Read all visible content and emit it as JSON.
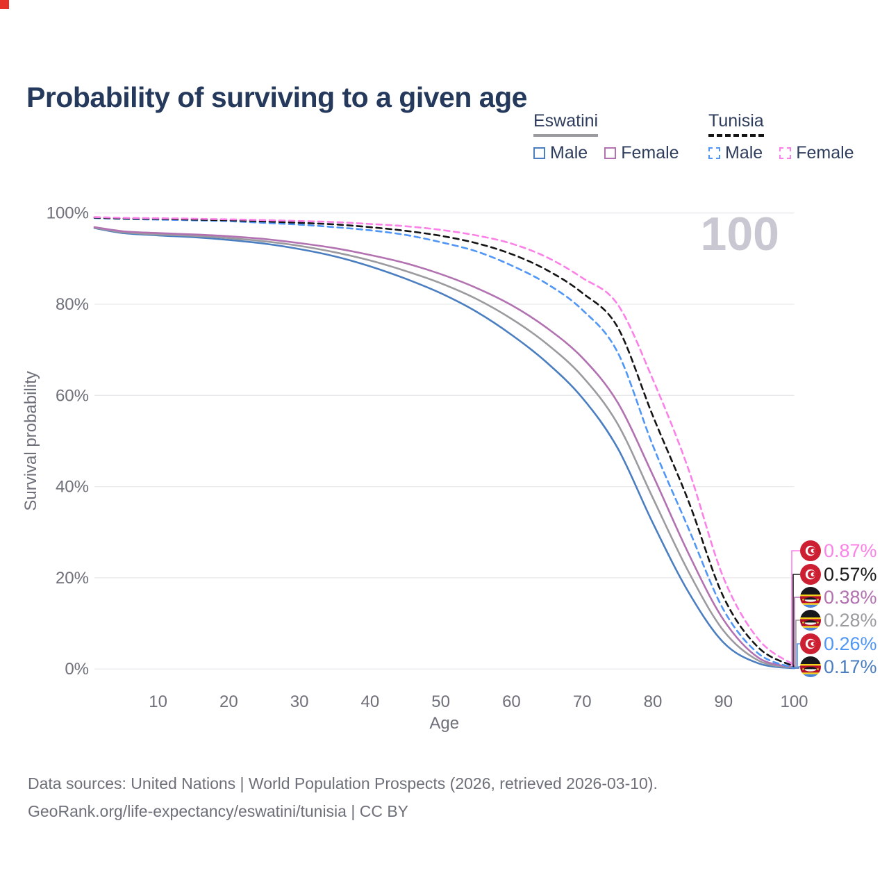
{
  "page": {
    "title": "Probability of surviving to a given age",
    "watermark_age": "100"
  },
  "legend": {
    "groups": [
      {
        "name": "Eswatini",
        "line_style": "solid",
        "underline_color": "#9b9b9f",
        "items": [
          {
            "label": "Male",
            "color": "#4a7ec0"
          },
          {
            "label": "Female",
            "color": "#b271b0"
          }
        ]
      },
      {
        "name": "Tunisia",
        "line_style": "dashed",
        "underline_color": "#141414",
        "items": [
          {
            "label": "Male",
            "color": "#4f96f6"
          },
          {
            "label": "Female",
            "color": "#fb80e8"
          }
        ]
      }
    ]
  },
  "chart_data": {
    "type": "line",
    "title": "Probability of surviving to a given age",
    "xlabel": "Age",
    "ylabel": "Survival probability",
    "xlim": [
      1,
      100
    ],
    "ylim": [
      0,
      100
    ],
    "x_ticks": [
      10,
      20,
      30,
      40,
      50,
      60,
      70,
      80,
      90,
      100
    ],
    "y_ticks": [
      0,
      20,
      40,
      60,
      80,
      100
    ],
    "y_tick_suffix": "%",
    "grid": "horizontal",
    "legend_position": "top-right",
    "series": [
      {
        "name": "Eswatini Male",
        "country": "Eswatini",
        "sex": "male",
        "color": "#4a7ec0",
        "dash": "none",
        "points": [
          [
            1,
            96.7
          ],
          [
            5,
            95.6
          ],
          [
            10,
            95.1
          ],
          [
            15,
            94.7
          ],
          [
            20,
            94.1
          ],
          [
            25,
            93.3
          ],
          [
            30,
            92.1
          ],
          [
            35,
            90.5
          ],
          [
            40,
            88.3
          ],
          [
            45,
            85.6
          ],
          [
            50,
            82.4
          ],
          [
            55,
            78.4
          ],
          [
            60,
            73.3
          ],
          [
            65,
            67.2
          ],
          [
            70,
            59.5
          ],
          [
            75,
            48.5
          ],
          [
            80,
            32.0
          ],
          [
            85,
            17.0
          ],
          [
            90,
            5.8
          ],
          [
            95,
            1.2
          ],
          [
            100,
            0.17
          ]
        ],
        "end_value_pct": 0.17
      },
      {
        "name": "Eswatini Both sexes",
        "country": "Eswatini",
        "sex": "both",
        "color": "#9b9b9f",
        "dash": "none",
        "points": [
          [
            1,
            96.8
          ],
          [
            5,
            95.8
          ],
          [
            10,
            95.3
          ],
          [
            15,
            95.0
          ],
          [
            20,
            94.5
          ],
          [
            25,
            93.8
          ],
          [
            30,
            92.8
          ],
          [
            35,
            91.4
          ],
          [
            40,
            89.6
          ],
          [
            45,
            87.3
          ],
          [
            50,
            84.6
          ],
          [
            55,
            81.2
          ],
          [
            60,
            76.8
          ],
          [
            65,
            71.3
          ],
          [
            70,
            64.2
          ],
          [
            75,
            53.8
          ],
          [
            80,
            37.5
          ],
          [
            85,
            21.5
          ],
          [
            90,
            8.4
          ],
          [
            95,
            1.8
          ],
          [
            100,
            0.28
          ]
        ],
        "end_value_pct": 0.28
      },
      {
        "name": "Eswatini Female",
        "country": "Eswatini",
        "sex": "female",
        "color": "#b271b0",
        "dash": "none",
        "points": [
          [
            1,
            96.9
          ],
          [
            5,
            96.0
          ],
          [
            10,
            95.6
          ],
          [
            15,
            95.3
          ],
          [
            20,
            94.9
          ],
          [
            25,
            94.3
          ],
          [
            30,
            93.4
          ],
          [
            35,
            92.3
          ],
          [
            40,
            90.8
          ],
          [
            45,
            89.0
          ],
          [
            50,
            86.6
          ],
          [
            55,
            83.6
          ],
          [
            60,
            79.8
          ],
          [
            65,
            74.8
          ],
          [
            70,
            68.3
          ],
          [
            75,
            58.5
          ],
          [
            80,
            42.5
          ],
          [
            85,
            25.5
          ],
          [
            90,
            10.8
          ],
          [
            95,
            2.4
          ],
          [
            100,
            0.38
          ]
        ],
        "end_value_pct": 0.38
      },
      {
        "name": "Tunisia Male",
        "country": "Tunisia",
        "sex": "male",
        "color": "#4f96f6",
        "dash": "8 6",
        "points": [
          [
            1,
            98.9
          ],
          [
            5,
            98.7
          ],
          [
            10,
            98.55
          ],
          [
            15,
            98.4
          ],
          [
            20,
            98.2
          ],
          [
            25,
            97.85
          ],
          [
            30,
            97.45
          ],
          [
            35,
            96.9
          ],
          [
            40,
            96.2
          ],
          [
            45,
            95.2
          ],
          [
            50,
            93.6
          ],
          [
            55,
            91.6
          ],
          [
            60,
            88.5
          ],
          [
            65,
            84.5
          ],
          [
            70,
            78.8
          ],
          [
            75,
            69.5
          ],
          [
            80,
            49.0
          ],
          [
            85,
            31.0
          ],
          [
            90,
            13.0
          ],
          [
            95,
            3.3
          ],
          [
            100,
            0.26
          ]
        ],
        "end_value_pct": 0.26
      },
      {
        "name": "Tunisia Both sexes",
        "country": "Tunisia",
        "sex": "both",
        "color": "#141414",
        "dash": "8 6",
        "points": [
          [
            1,
            99.0
          ],
          [
            5,
            98.8
          ],
          [
            10,
            98.7
          ],
          [
            15,
            98.55
          ],
          [
            20,
            98.4
          ],
          [
            25,
            98.15
          ],
          [
            30,
            97.85
          ],
          [
            35,
            97.5
          ],
          [
            40,
            96.9
          ],
          [
            45,
            96.1
          ],
          [
            50,
            95.0
          ],
          [
            55,
            93.4
          ],
          [
            60,
            91.0
          ],
          [
            65,
            87.5
          ],
          [
            70,
            82.5
          ],
          [
            75,
            75.0
          ],
          [
            80,
            55.5
          ],
          [
            85,
            37.0
          ],
          [
            90,
            15.8
          ],
          [
            95,
            4.6
          ],
          [
            100,
            0.57
          ]
        ],
        "end_value_pct": 0.57
      },
      {
        "name": "Tunisia Female",
        "country": "Tunisia",
        "sex": "female",
        "color": "#fb80e8",
        "dash": "8 6",
        "points": [
          [
            1,
            99.1
          ],
          [
            5,
            98.95
          ],
          [
            10,
            98.85
          ],
          [
            15,
            98.75
          ],
          [
            20,
            98.6
          ],
          [
            25,
            98.45
          ],
          [
            30,
            98.25
          ],
          [
            35,
            98.0
          ],
          [
            40,
            97.6
          ],
          [
            45,
            97.1
          ],
          [
            50,
            96.3
          ],
          [
            55,
            95.1
          ],
          [
            60,
            93.3
          ],
          [
            65,
            90.3
          ],
          [
            70,
            85.8
          ],
          [
            75,
            80.0
          ],
          [
            80,
            63.5
          ],
          [
            85,
            44.0
          ],
          [
            90,
            20.0
          ],
          [
            95,
            6.4
          ],
          [
            100,
            0.87
          ]
        ],
        "end_value_pct": 0.87
      }
    ],
    "end_labels": [
      {
        "text": "0.87%",
        "color": "#fb80e8",
        "flag": "tunisia",
        "series": "Tunisia Female"
      },
      {
        "text": "0.57%",
        "color": "#1a1a1a",
        "flag": "tunisia",
        "series": "Tunisia Both sexes"
      },
      {
        "text": "0.38%",
        "color": "#b271b0",
        "flag": "eswatini",
        "series": "Eswatini Female"
      },
      {
        "text": "0.28%",
        "color": "#9b9b9f",
        "flag": "eswatini",
        "series": "Eswatini Both sexes"
      },
      {
        "text": "0.26%",
        "color": "#4f96f6",
        "flag": "tunisia",
        "series": "Tunisia Male"
      },
      {
        "text": "0.17%",
        "color": "#4a7ec0",
        "flag": "eswatini",
        "series": "Eswatini Male"
      }
    ]
  },
  "footer": {
    "line1": "Data sources: United Nations | World Population Prospects (2026, retrieved 2026-03-10).",
    "line2": "GeoRank.org/life-expectancy/eswatini/tunisia | CC BY"
  }
}
